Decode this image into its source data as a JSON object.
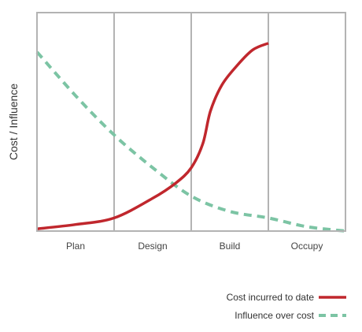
{
  "colors": {
    "frame": "#b3b3b3",
    "cost_series": "#c0272d",
    "influence_series": "#7cc4a4"
  },
  "chart_data": {
    "type": "line",
    "title": "",
    "xlabel": "",
    "ylabel": "Cost / Influence",
    "categories": [
      "Plan",
      "Design",
      "Build",
      "Occupy"
    ],
    "xlim": [
      0,
      4
    ],
    "ylim": [
      0,
      100
    ],
    "grid": "vertical dividers between phases",
    "legend_position": "bottom-right",
    "series": [
      {
        "name": "Cost incurred to date",
        "style": "solid",
        "x": [
          0,
          0.5,
          1,
          1.5,
          1.8,
          2,
          2.15,
          2.25,
          2.4,
          2.6,
          2.8,
          3
        ],
        "y": [
          1,
          3,
          6,
          15,
          22,
          29,
          40,
          55,
          67,
          76,
          83,
          86
        ]
      },
      {
        "name": "Influence over cost",
        "style": "dashed",
        "x": [
          0,
          0.5,
          1,
          1.5,
          2,
          2.5,
          3,
          3.5,
          4
        ],
        "y": [
          82,
          62,
          44,
          29,
          16,
          9,
          6,
          2,
          0
        ]
      }
    ]
  }
}
